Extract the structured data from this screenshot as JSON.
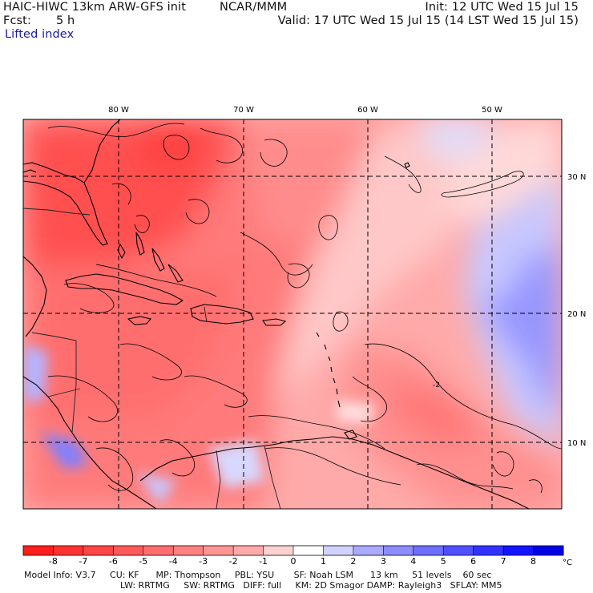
{
  "header": {
    "model_title": "HAIC-HIWC 13km ARW-GFS init",
    "org": "NCAR/MMM",
    "init": "Init: 12 UTC Wed 15 Jul 15",
    "fcst_label": "Fcst:",
    "fcst_value": "5 h",
    "valid": "Valid: 17 UTC Wed 15 Jul 15 (14 LST Wed 15 Jul 15)",
    "field": "Lifted index"
  },
  "map": {
    "lon_labels": [
      "80 W",
      "70 W",
      "60 W",
      "50 W"
    ],
    "lat_labels": [
      "30 N",
      "20 N",
      "10 N"
    ],
    "contour_labels": [
      "-2"
    ]
  },
  "colorbar": {
    "ticks": [
      "-8",
      "-7",
      "-6",
      "-5",
      "-4",
      "-3",
      "-2",
      "-1",
      "0",
      "1",
      "2",
      "3",
      "4",
      "5",
      "6",
      "7",
      "8"
    ],
    "unit": "°C",
    "colors": [
      "#ff1e1e",
      "#ff3232",
      "#ff4646",
      "#ff5a5a",
      "#ff6e6e",
      "#ff8282",
      "#ff9696",
      "#ffaaaa",
      "#ffd2d2",
      "#ffffff",
      "#d2d2ff",
      "#aaaaff",
      "#8c8cff",
      "#6e6eff",
      "#5050ff",
      "#3232ff",
      "#1414ff",
      "#0000e6"
    ]
  },
  "footer": {
    "line1": "Model Info: V3.7     CU: KF      MP: Thompson     PBL: YSU       SF: Noah LSM      13 km     51 levels    60 sec",
    "line2": "LW: RRTMG     SW: RRTMG   DIFF: full     KM: 2D Smagor DAMP: Rayleigh3   SFLAY: MM5"
  }
}
